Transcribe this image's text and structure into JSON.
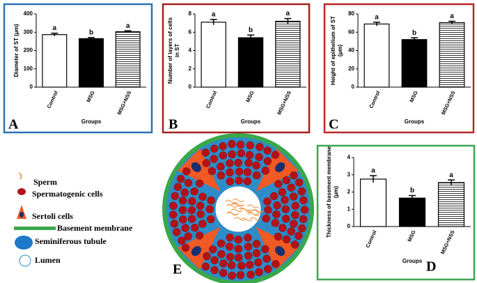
{
  "chart_data": [
    {
      "type": "bar",
      "panel": "A",
      "ylabel": [
        "Diameter of ST (μm)"
      ],
      "xlabel": "Groups",
      "categories": [
        "Control",
        "MSG",
        "MSG+NSS"
      ],
      "values": [
        287,
        265,
        303
      ],
      "errors": [
        8,
        6,
        5
      ],
      "annotations": [
        "a",
        "b",
        "a"
      ],
      "colors": [
        "#ffffff",
        "#000000",
        "#ffffff"
      ],
      "hatch": [
        false,
        false,
        true
      ],
      "ylim": [
        0,
        400
      ],
      "yticks": [
        0,
        100,
        200,
        300,
        400
      ],
      "border_color": "#2a72b8"
    },
    {
      "type": "bar",
      "panel": "B",
      "ylabel": [
        "Number of layers of cells",
        "in ST"
      ],
      "xlabel": "Groups",
      "categories": [
        "Control",
        "MSG",
        "MSG+NSS"
      ],
      "values": [
        7.1,
        5.4,
        7.2
      ],
      "errors": [
        0.3,
        0.3,
        0.3
      ],
      "annotations": [
        "a",
        "b",
        "a"
      ],
      "colors": [
        "#ffffff",
        "#000000",
        "#ffffff"
      ],
      "hatch": [
        false,
        false,
        true
      ],
      "ylim": [
        0,
        8
      ],
      "yticks": [
        0,
        2,
        4,
        6,
        8
      ],
      "border_color": "#a3201f"
    },
    {
      "type": "bar",
      "panel": "C",
      "ylabel": [
        "Height of epithelium of ST",
        "(μm)"
      ],
      "xlabel": "Groups",
      "categories": [
        "Control",
        "MSG",
        "MSG+NSS"
      ],
      "values": [
        69,
        52,
        70.5
      ],
      "errors": [
        2,
        2,
        1.5
      ],
      "annotations": [
        "a",
        "b",
        "a"
      ],
      "colors": [
        "#ffffff",
        "#000000",
        "#ffffff"
      ],
      "hatch": [
        false,
        false,
        true
      ],
      "ylim": [
        0,
        80
      ],
      "yticks": [
        0,
        20,
        40,
        60,
        80
      ],
      "border_color": "#b8282a"
    },
    {
      "type": "bar",
      "panel": "D",
      "ylabel": [
        "Thickness of basement membrane",
        "(μm)"
      ],
      "xlabel": "Groups",
      "categories": [
        "Control",
        "MSG",
        "MSG+NSS"
      ],
      "values": [
        2.75,
        1.65,
        2.55
      ],
      "errors": [
        0.2,
        0.15,
        0.15
      ],
      "annotations": [
        "a",
        "b",
        "a"
      ],
      "colors": [
        "#ffffff",
        "#000000",
        "#ffffff"
      ],
      "hatch": [
        false,
        false,
        true
      ],
      "ylim": [
        0,
        4
      ],
      "yticks": [
        0,
        1,
        2,
        3,
        4
      ],
      "border_color": "#3aa655"
    }
  ],
  "diagram": {
    "panel": "E",
    "legend": [
      "Sperm",
      "Spermatogenic cells",
      "Sertoli cells",
      "Basement membrane",
      "Seminiferous tubule",
      "Lumen"
    ]
  }
}
